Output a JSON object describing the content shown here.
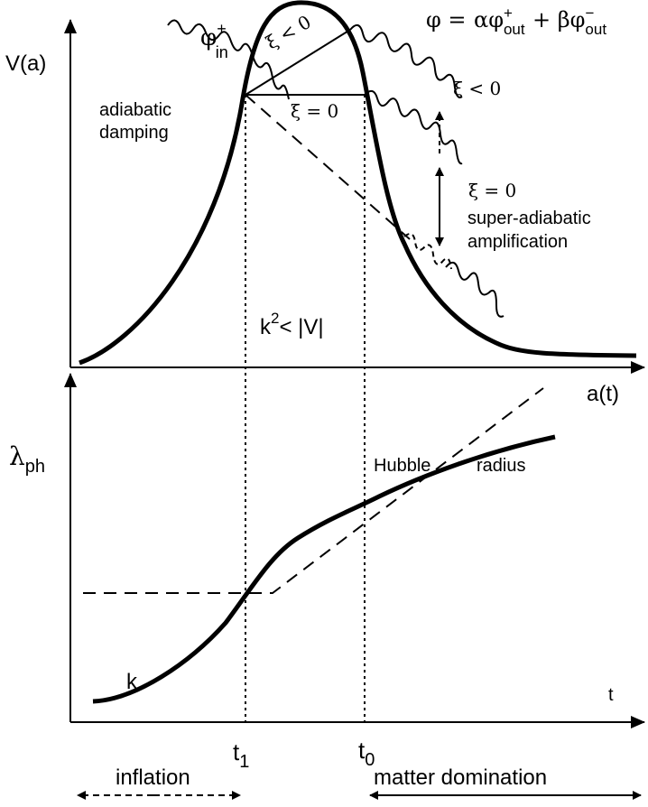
{
  "top_panel": {
    "y_axis_label": "V(a)",
    "x_axis_label": "a(t)",
    "incoming_wave_label": {
      "phi": "φ",
      "sup": "+",
      "sub": "in"
    },
    "outgoing_formula": {
      "lhs": "φ =",
      "alpha": "αφ",
      "sup1": "+",
      "sub1": "out",
      "plus": "+ βφ",
      "sup2": "−",
      "sub2": "out"
    },
    "xi_lt_0_inner": "ξ < 0",
    "xi_eq_0_inner": "ξ = 0",
    "xi_lt_0_outer": "ξ < 0",
    "xi_eq_0_outer": "ξ = 0",
    "adiabatic_damping_line1": "adiabatic",
    "adiabatic_damping_line2": "damping",
    "super_adiabatic_line1": "super-adiabatic",
    "super_adiabatic_line2": "amplification",
    "condition": {
      "k": "k",
      "exp": "2",
      "rest": "< |V|"
    }
  },
  "bottom_panel": {
    "y_axis_label": {
      "lambda": "λ",
      "sub": "ph"
    },
    "x_axis_label": "t",
    "hubble_label_1": "Hubble",
    "hubble_label_2": "radius",
    "curve_label": "k",
    "t1": {
      "t": "t",
      "sub": "1"
    },
    "t0": {
      "t": "t",
      "sub": "0"
    }
  },
  "eras": {
    "inflation": "inflation",
    "matter_domination": "matter domination"
  }
}
